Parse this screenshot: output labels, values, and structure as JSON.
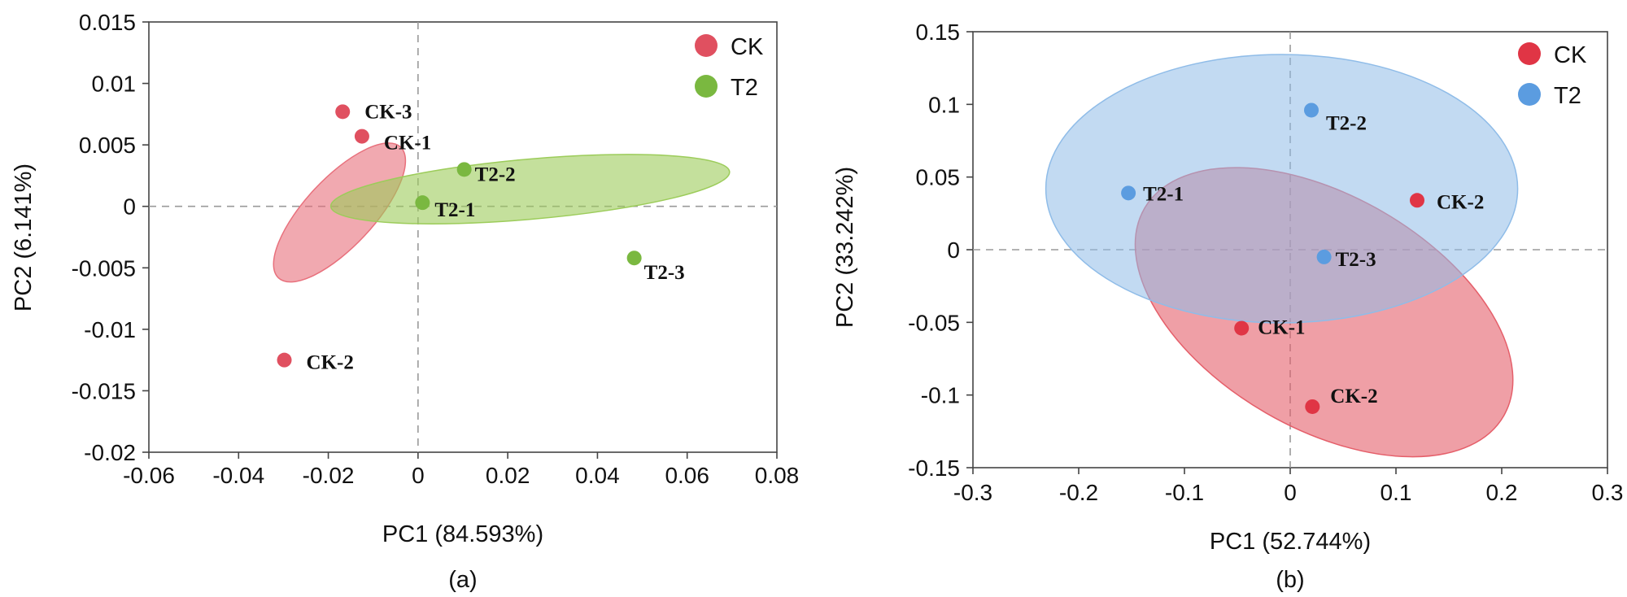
{
  "chart_data": [
    {
      "type": "scatter",
      "panel_label": "(a)",
      "xlabel": "PC1 (84.593%)",
      "ylabel": "PC2 (6.141%)",
      "xlim": [
        -0.06,
        0.08
      ],
      "ylim": [
        -0.02,
        0.015
      ],
      "xticks": [
        -0.06,
        -0.04,
        -0.02,
        0,
        0.02,
        0.04,
        0.06,
        0.08
      ],
      "xtick_labels": [
        "-0.06",
        "-0.04",
        "-0.02",
        "0",
        "0.02",
        "0.04",
        "0.06",
        "0.08"
      ],
      "yticks": [
        -0.02,
        -0.015,
        -0.01,
        -0.005,
        0,
        0.005,
        0.01,
        0.015
      ],
      "ytick_labels": [
        "-0.02",
        "-0.015",
        "-0.01",
        "-0.005",
        "0",
        "0.005",
        "0.01",
        "0.015"
      ],
      "legend_position": "top-right",
      "series": [
        {
          "name": "CK",
          "color": "#e05060",
          "ellipse_color": "#e8707c",
          "points": [
            {
              "label": "CK-3",
              "x": -0.0168,
              "y": 0.0077
            },
            {
              "label": "CK-1",
              "x": -0.0125,
              "y": 0.0057
            },
            {
              "label": "CK-2",
              "x": -0.0298,
              "y": -0.0125
            }
          ],
          "ellipse": {
            "cx": -0.0175,
            "cy": -0.0005,
            "rx": 0.0205,
            "ry": 0.0018,
            "angle_deg": 47
          }
        },
        {
          "name": "T2",
          "color": "#7ab840",
          "ellipse_color": "#9ccc5a",
          "points": [
            {
              "label": "T2-2",
              "x": 0.0103,
              "y": 0.003
            },
            {
              "label": "T2-1",
              "x": 0.001,
              "y": 0.0003
            },
            {
              "label": "T2-3",
              "x": 0.0482,
              "y": -0.0042
            }
          ],
          "ellipse": {
            "cx": 0.025,
            "cy": 0.0014,
            "rx": 0.0395,
            "ry": 0.0042,
            "angle_deg": 5
          }
        }
      ]
    },
    {
      "type": "scatter",
      "panel_label": "(b)",
      "xlabel": "PC1 (52.744%)",
      "ylabel": "PC2 (33.242%)",
      "xlim": [
        -0.3,
        0.3
      ],
      "ylim": [
        -0.15,
        0.15
      ],
      "xticks": [
        -0.3,
        -0.2,
        -0.1,
        0,
        0.1,
        0.2,
        0.3
      ],
      "xtick_labels": [
        "-0.3",
        "-0.2",
        "-0.1",
        "0",
        "0.1",
        "0.2",
        "0.3"
      ],
      "yticks": [
        -0.15,
        -0.1,
        -0.05,
        0,
        0.05,
        0.1,
        0.15
      ],
      "ytick_labels": [
        "-0.15",
        "-0.1",
        "-0.05",
        "0",
        "0.05",
        "0.1",
        "0.15"
      ],
      "legend_position": "top-right",
      "series": [
        {
          "name": "CK",
          "color": "#e03545",
          "ellipse_color": "#e55f6a",
          "points": [
            {
              "label": "CK-2",
              "x": 0.12,
              "y": 0.034
            },
            {
              "label": "CK-1",
              "x": -0.046,
              "y": -0.054
            },
            {
              "label": "CK-2",
              "x": 0.021,
              "y": -0.108
            }
          ],
          "ellipse": {
            "cx": 0.032,
            "cy": -0.043,
            "rx": 0.178,
            "ry": 0.068,
            "angle_deg": -30
          }
        },
        {
          "name": "T2",
          "color": "#5b9ce0",
          "ellipse_color": "#8fbce8",
          "points": [
            {
              "label": "T2-2",
              "x": 0.02,
              "y": 0.096
            },
            {
              "label": "T2-1",
              "x": -0.153,
              "y": 0.039
            },
            {
              "label": "T2-3",
              "x": 0.032,
              "y": -0.005
            }
          ],
          "ellipse": {
            "cx": -0.008,
            "cy": 0.042,
            "rx": 0.222,
            "ry": 0.092,
            "angle_deg": 0
          }
        }
      ]
    }
  ]
}
